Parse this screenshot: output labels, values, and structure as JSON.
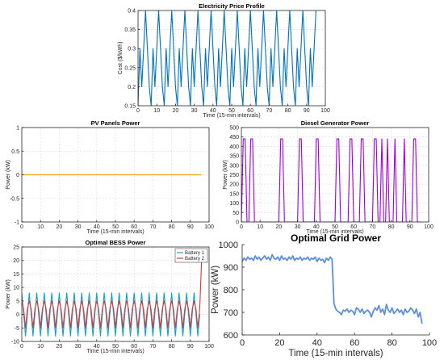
{
  "chart_data": [
    {
      "type": "line",
      "title": "Electricity Price Profile",
      "xlabel": "Time (15-min intervals)",
      "ylabel": "Cost ($/kWh)",
      "xlim": [
        0,
        100
      ],
      "ylim": [
        0.15,
        0.4
      ],
      "xticks": [
        0,
        10,
        20,
        30,
        40,
        50,
        60,
        70,
        80,
        90,
        100
      ],
      "yticks": [
        0.15,
        0.2,
        0.25,
        0.3,
        0.35,
        0.4
      ],
      "grid": true,
      "colors": {
        "line": "#0072BD"
      },
      "series": [
        {
          "x": [
            0,
            1,
            2,
            3,
            4,
            5,
            6,
            7,
            8,
            9,
            10,
            11,
            12,
            13,
            14,
            15,
            16,
            17,
            18,
            19,
            20,
            21,
            22,
            23,
            24,
            25,
            26,
            27,
            28,
            29,
            30,
            31,
            32,
            33,
            34,
            35,
            36,
            37,
            38,
            39,
            40,
            41,
            42,
            43,
            44,
            45,
            46,
            47,
            48,
            49,
            50,
            51,
            52,
            53,
            54,
            55,
            56,
            57,
            58,
            59,
            60,
            61,
            62,
            63,
            64,
            65,
            66,
            67,
            68,
            69,
            70,
            71,
            72,
            73,
            74,
            75,
            76,
            77,
            78,
            79,
            80,
            81,
            82,
            83,
            84,
            85,
            86,
            87,
            88,
            89,
            90,
            91,
            92,
            93,
            94,
            95
          ],
          "values": [
            0.15,
            0.3,
            0.2,
            0.3,
            0.4,
            0.3,
            0.2,
            0.15,
            0.3,
            0.2,
            0.3,
            0.4,
            0.3,
            0.2,
            0.15,
            0.3,
            0.2,
            0.3,
            0.4,
            0.3,
            0.2,
            0.15,
            0.3,
            0.2,
            0.3,
            0.4,
            0.3,
            0.2,
            0.15,
            0.3,
            0.2,
            0.3,
            0.4,
            0.3,
            0.2,
            0.15,
            0.3,
            0.2,
            0.3,
            0.4,
            0.3,
            0.2,
            0.15,
            0.3,
            0.2,
            0.3,
            0.4,
            0.3,
            0.2,
            0.15,
            0.3,
            0.2,
            0.3,
            0.4,
            0.3,
            0.2,
            0.15,
            0.3,
            0.2,
            0.3,
            0.4,
            0.3,
            0.2,
            0.15,
            0.3,
            0.2,
            0.3,
            0.4,
            0.3,
            0.2,
            0.15,
            0.3,
            0.2,
            0.3,
            0.4,
            0.3,
            0.2,
            0.15,
            0.3,
            0.2,
            0.3,
            0.4,
            0.3,
            0.2,
            0.15,
            0.3,
            0.2,
            0.3,
            0.4,
            0.3,
            0.2,
            0.15,
            0.3,
            0.2,
            0.3,
            0.4
          ]
        }
      ]
    },
    {
      "type": "line",
      "title": "PV Panels Power",
      "xlabel": "Time (15-min intervals)",
      "ylabel": "Power (kW)",
      "xlim": [
        0,
        100
      ],
      "ylim": [
        -1,
        1
      ],
      "xticks": [
        0,
        10,
        20,
        30,
        40,
        50,
        60,
        70,
        80,
        90,
        100
      ],
      "yticks": [
        -1,
        -0.5,
        0,
        0.5,
        1
      ],
      "grid": true,
      "colors": {
        "line": "#EDB120"
      },
      "series": [
        {
          "x": [
            0,
            96
          ],
          "values": [
            0,
            0
          ]
        }
      ]
    },
    {
      "type": "line",
      "title": "Diesel Generator Power",
      "xlabel": "Time (15-min intervals)",
      "ylabel": "Power (kW)",
      "xlim": [
        0,
        100
      ],
      "ylim": [
        0,
        500
      ],
      "xticks": [
        0,
        10,
        20,
        30,
        40,
        50,
        60,
        70,
        80,
        90,
        100
      ],
      "yticks": [
        0,
        50,
        100,
        150,
        200,
        250,
        300,
        350,
        400,
        450,
        500
      ],
      "grid": true,
      "colors": {
        "line": "#A000D8"
      },
      "series": [
        {
          "x": [
            0,
            1,
            2,
            3,
            4,
            5,
            6,
            7,
            8,
            9,
            10,
            11,
            12,
            13,
            14,
            15,
            16,
            17,
            18,
            19,
            20,
            21,
            22,
            23,
            24,
            25,
            26,
            27,
            28,
            29,
            30,
            31,
            32,
            33,
            34,
            35,
            36,
            37,
            38,
            39,
            40,
            41,
            42,
            43,
            44,
            45,
            46,
            47,
            48,
            49,
            50,
            51,
            52,
            53,
            54,
            55,
            56,
            57,
            58,
            59,
            60,
            61,
            62,
            63,
            64,
            65,
            66,
            67,
            68,
            69,
            70,
            71,
            72,
            73,
            74,
            75,
            76,
            77,
            78,
            79,
            80,
            81,
            82,
            83,
            84,
            85,
            86,
            87,
            88,
            89,
            90,
            91,
            92,
            93,
            94,
            95,
            96
          ],
          "values": [
            0,
            440,
            440,
            0,
            0,
            440,
            440,
            0,
            0,
            0,
            0,
            0,
            0,
            0,
            0,
            0,
            0,
            0,
            0,
            0,
            0,
            440,
            440,
            0,
            0,
            0,
            0,
            0,
            0,
            0,
            0,
            440,
            440,
            0,
            0,
            0,
            0,
            0,
            0,
            0,
            440,
            440,
            0,
            0,
            0,
            0,
            0,
            0,
            0,
            0,
            0,
            440,
            440,
            0,
            0,
            0,
            0,
            0,
            440,
            440,
            0,
            0,
            0,
            0,
            440,
            440,
            0,
            0,
            0,
            0,
            0,
            440,
            440,
            0,
            0,
            440,
            0,
            0,
            440,
            0,
            0,
            0,
            440,
            0,
            0,
            0,
            0,
            440,
            0,
            0,
            0,
            0,
            440,
            440,
            0,
            0,
            0
          ]
        }
      ]
    },
    {
      "type": "line",
      "title": "Optimal BESS Power",
      "xlabel": "Time (15-min intervals)",
      "ylabel": "Power (kW)",
      "xlim": [
        0,
        100
      ],
      "ylim": [
        -10,
        25
      ],
      "xticks": [
        0,
        10,
        20,
        30,
        40,
        50,
        60,
        70,
        80,
        90,
        100
      ],
      "yticks": [
        -10,
        -5,
        0,
        5,
        10,
        15,
        20,
        25
      ],
      "grid": true,
      "legend": "top-right",
      "colors": {
        "battery1": "#0072BD",
        "battery2": "#D95319"
      },
      "series": [
        {
          "name": "Battery 1",
          "x": [
            0,
            1,
            2,
            3,
            4,
            5,
            6,
            7,
            8,
            9,
            10,
            11,
            12,
            13,
            14,
            15,
            16,
            17,
            18,
            19,
            20,
            21,
            22,
            23,
            24,
            25,
            26,
            27,
            28,
            29,
            30,
            31,
            32,
            33,
            34,
            35,
            36,
            37,
            38,
            39,
            40,
            41,
            42,
            43,
            44,
            45,
            46,
            47,
            48,
            49,
            50,
            51,
            52,
            53,
            54,
            55,
            56,
            57,
            58,
            59,
            60,
            61,
            62,
            63,
            64,
            65,
            66,
            67,
            68,
            69,
            70,
            71,
            72,
            73,
            74,
            75,
            76,
            77,
            78,
            79,
            80,
            81,
            82,
            83,
            84,
            85,
            86,
            87,
            88,
            89,
            90,
            91,
            92,
            93,
            94,
            95
          ],
          "values": [
            8,
            0,
            -8,
            0,
            8,
            0,
            -8,
            0,
            8,
            0,
            -8,
            0,
            8,
            0,
            -8,
            0,
            8,
            0,
            -8,
            0,
            8,
            0,
            -8,
            0,
            8,
            0,
            -8,
            0,
            8,
            0,
            -8,
            0,
            8,
            0,
            -8,
            0,
            8,
            0,
            -8,
            0,
            8,
            0,
            -8,
            0,
            8,
            0,
            -8,
            0,
            8,
            0,
            -8,
            0,
            8,
            0,
            -8,
            0,
            8,
            0,
            -8,
            0,
            8,
            0,
            -8,
            0,
            8,
            0,
            -8,
            0,
            8,
            0,
            -8,
            0,
            8,
            0,
            -8,
            0,
            8,
            0,
            -8,
            0,
            8,
            0,
            -8,
            0,
            8,
            0,
            -8,
            0,
            8,
            0,
            -8,
            0,
            8,
            0,
            -8,
            0
          ]
        },
        {
          "name": "Battery 2",
          "x": [
            0,
            1,
            2,
            3,
            4,
            5,
            6,
            7,
            8,
            9,
            10,
            11,
            12,
            13,
            14,
            15,
            16,
            17,
            18,
            19,
            20,
            21,
            22,
            23,
            24,
            25,
            26,
            27,
            28,
            29,
            30,
            31,
            32,
            33,
            34,
            35,
            36,
            37,
            38,
            39,
            40,
            41,
            42,
            43,
            44,
            45,
            46,
            47,
            48,
            49,
            50,
            51,
            52,
            53,
            54,
            55,
            56,
            57,
            58,
            59,
            60,
            61,
            62,
            63,
            64,
            65,
            66,
            67,
            68,
            69,
            70,
            71,
            72,
            73,
            74,
            75,
            76,
            77,
            78,
            79,
            80,
            81,
            82,
            83,
            84,
            85,
            86,
            87,
            88,
            89,
            90,
            91,
            92,
            93,
            94,
            95,
            96
          ],
          "values": [
            5,
            2,
            -5,
            2,
            5,
            2,
            -5,
            2,
            5,
            2,
            -5,
            2,
            5,
            2,
            -5,
            2,
            5,
            2,
            -5,
            2,
            5,
            2,
            -5,
            2,
            5,
            2,
            -5,
            2,
            5,
            2,
            -5,
            2,
            5,
            2,
            -5,
            2,
            5,
            2,
            -5,
            2,
            5,
            2,
            -5,
            2,
            5,
            2,
            -5,
            2,
            5,
            2,
            -5,
            2,
            5,
            2,
            -5,
            2,
            5,
            2,
            -5,
            2,
            5,
            2,
            -5,
            2,
            5,
            2,
            -5,
            2,
            5,
            2,
            -5,
            2,
            5,
            2,
            -5,
            2,
            5,
            2,
            -5,
            2,
            5,
            2,
            -5,
            2,
            5,
            2,
            -5,
            2,
            5,
            2,
            -5,
            2,
            5,
            2,
            -5,
            2,
            20
          ]
        }
      ]
    },
    {
      "type": "line",
      "title": "Optimal Grid Power",
      "xlabel": "Time (15-min intervals)",
      "ylabel": "Power (kW)",
      "xlim": [
        0,
        100
      ],
      "ylim": [
        600,
        1000
      ],
      "xticks": [
        0,
        20,
        40,
        60,
        80,
        100
      ],
      "yticks": [
        600,
        700,
        800,
        900,
        1000
      ],
      "grid": false,
      "colors": {
        "line": "#5B8FE0"
      },
      "series": [
        {
          "x": [
            0,
            1,
            2,
            3,
            4,
            5,
            6,
            7,
            8,
            9,
            10,
            11,
            12,
            13,
            14,
            15,
            16,
            17,
            18,
            19,
            20,
            21,
            22,
            23,
            24,
            25,
            26,
            27,
            28,
            29,
            30,
            31,
            32,
            33,
            34,
            35,
            36,
            37,
            38,
            39,
            40,
            41,
            42,
            43,
            44,
            45,
            46,
            47,
            48,
            49,
            50,
            51,
            52,
            53,
            54,
            55,
            56,
            57,
            58,
            59,
            60,
            61,
            62,
            63,
            64,
            65,
            66,
            67,
            68,
            69,
            70,
            71,
            72,
            73,
            74,
            75,
            76,
            77,
            78,
            79,
            80,
            81,
            82,
            83,
            84,
            85,
            86,
            87,
            88,
            89,
            90,
            91,
            92,
            93,
            94,
            95,
            96
          ],
          "values": [
            925,
            940,
            930,
            945,
            935,
            940,
            930,
            950,
            935,
            945,
            930,
            940,
            950,
            935,
            945,
            930,
            955,
            940,
            935,
            945,
            930,
            950,
            935,
            940,
            930,
            945,
            935,
            950,
            930,
            940,
            935,
            945,
            930,
            940,
            935,
            945,
            930,
            940,
            935,
            945,
            925,
            940,
            930,
            935,
            920,
            940,
            930,
            945,
            935,
            740,
            715,
            705,
            700,
            690,
            710,
            705,
            715,
            700,
            710,
            705,
            690,
            720,
            715,
            700,
            715,
            695,
            705,
            710,
            700,
            680,
            705,
            720,
            710,
            730,
            700,
            715,
            690,
            735,
            710,
            700,
            720,
            695,
            705,
            715,
            700,
            710,
            690,
            715,
            700,
            705,
            720,
            710,
            695,
            715,
            680,
            700,
            650
          ]
        }
      ]
    }
  ]
}
